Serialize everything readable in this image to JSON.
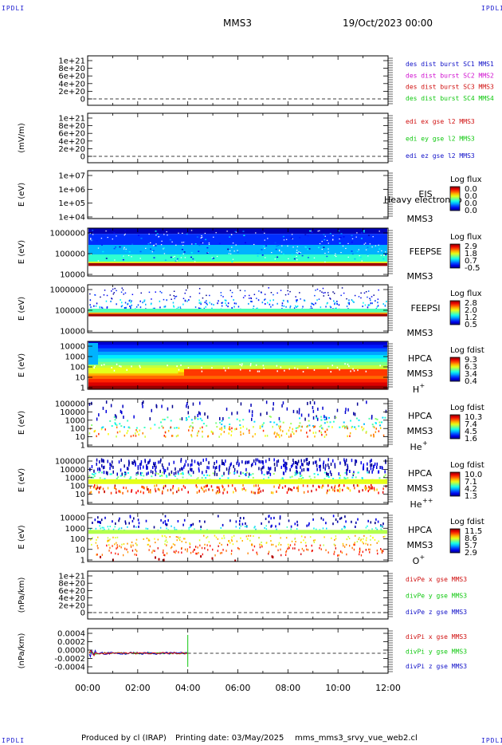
{
  "corners": {
    "top_left": "IPDLI",
    "top_right": "IPDLI",
    "bottom_left": "IPDLI",
    "bottom_right": "IPDLI"
  },
  "header": {
    "spacecraft": "MMS3",
    "date": "19/Oct/2023 00:00"
  },
  "footer": {
    "produced_by": "Produced by cl (IRAP)",
    "printing_date": "Printing date: 03/May/2025",
    "script": "mms_mms3_srvy_vue_web2.cl"
  },
  "colors": {
    "mms1": "#1010c8",
    "mms2": "#d010d0",
    "mms3": "#d01010",
    "mms4": "#10c810",
    "x": "#d01010",
    "y": "#10c810",
    "z": "#1010c8"
  },
  "chart_data": {
    "type": "multi-panel",
    "x_ticks": [
      "00:00",
      "02:00",
      "04:00",
      "06:00",
      "08:00",
      "10:00",
      "12:00"
    ],
    "xlim_hours": [
      0,
      12
    ],
    "panels": [
      {
        "id": "p0",
        "type": "line",
        "ylabel": "",
        "yticks": [
          "1e+21",
          "8e+20",
          "6e+20",
          "4e+20",
          "2e+20",
          "0"
        ],
        "ylim": [
          0,
          1e+21
        ],
        "legend": [
          "des dist burst SC1 MMS1",
          "des dist burst SC2 MMS2",
          "des dist burst SC3 MMS3",
          "des dist burst SC4 MMS4"
        ],
        "legend_colors": [
          "#1010c8",
          "#d010d0",
          "#d01010",
          "#10c810"
        ]
      },
      {
        "id": "p1",
        "type": "line",
        "ylabel": "(mV/m)",
        "yticks": [
          "1e+21",
          "8e+20",
          "6e+20",
          "4e+20",
          "2e+20",
          "0"
        ],
        "ylim": [
          0,
          1e+21
        ],
        "legend": [
          "edi ex gse l2 MMS3",
          "edi ey gse l2 MMS3",
          "edi ez gse l2 MMS3"
        ],
        "legend_colors": [
          "#d01010",
          "#10c810",
          "#1010c8"
        ]
      },
      {
        "id": "p2",
        "type": "heatmap",
        "ylabel": "E (eV)",
        "yticks": [
          "1e+07",
          "1e+06",
          "1e+05",
          "1e+04"
        ],
        "yscale": "log",
        "instrument": [
          "EIS",
          "MMS3"
        ],
        "overlay_text": "Heavy electron to",
        "cbar_title": "Log flux",
        "cbar_ticks": [
          "0.0",
          "0.0",
          "0.0",
          "0.0"
        ]
      },
      {
        "id": "p3",
        "type": "heatmap",
        "ylabel": "E (eV)",
        "yticks": [
          "1000000",
          "100000",
          "10000"
        ],
        "yscale": "log",
        "instrument": [
          "FEEPSE",
          "MMS3"
        ],
        "cbar_title": "Log flux",
        "cbar_ticks": [
          "2.9",
          "1.8",
          "0.7",
          "-0.5"
        ]
      },
      {
        "id": "p4",
        "type": "heatmap",
        "ylabel": "E (eV)",
        "yticks": [
          "1000000",
          "100000",
          "10000"
        ],
        "yscale": "log",
        "instrument": [
          "FEEPSI",
          "MMS3"
        ],
        "cbar_title": "Log flux",
        "cbar_ticks": [
          "2.8",
          "2.0",
          "1.2",
          "0.5"
        ]
      },
      {
        "id": "p5",
        "type": "heatmap",
        "ylabel": "E (eV)",
        "yticks": [
          "10000",
          "1000",
          "100",
          "10",
          "1"
        ],
        "yscale": "log",
        "instrument": [
          "HPCA",
          "MMS3",
          "H+"
        ],
        "cbar_title": "Log fdist",
        "cbar_ticks": [
          "9.3",
          "6.3",
          "3.4",
          "0.4"
        ]
      },
      {
        "id": "p6",
        "type": "heatmap",
        "ylabel": "E (eV)",
        "yticks": [
          "100000",
          "10000",
          "1000",
          "100",
          "10",
          "1"
        ],
        "yscale": "log",
        "instrument": [
          "HPCA",
          "MMS3",
          "He+"
        ],
        "cbar_title": "Log fdist",
        "cbar_ticks": [
          "10.3",
          "7.4",
          "4.5",
          "1.6"
        ]
      },
      {
        "id": "p7",
        "type": "heatmap",
        "ylabel": "E (eV)",
        "yticks": [
          "100000",
          "10000",
          "1000",
          "100",
          "10",
          "1"
        ],
        "yscale": "log",
        "instrument": [
          "HPCA",
          "MMS3",
          "He++"
        ],
        "cbar_title": "Log fdist",
        "cbar_ticks": [
          "10.0",
          "7.1",
          "4.2",
          "1.3"
        ]
      },
      {
        "id": "p8",
        "type": "heatmap",
        "ylabel": "E (eV)",
        "yticks": [
          "10000",
          "1000",
          "100",
          "10",
          "1"
        ],
        "yscale": "log",
        "instrument": [
          "HPCA",
          "MMS3",
          "O+"
        ],
        "cbar_title": "Log fdist",
        "cbar_ticks": [
          "11.5",
          "8.6",
          "5.7",
          "2.9"
        ]
      },
      {
        "id": "p9",
        "type": "line",
        "ylabel": "(nPa/km)",
        "yticks": [
          "1e+21",
          "8e+20",
          "6e+20",
          "4e+20",
          "2e+20",
          "0"
        ],
        "ylim": [
          0,
          1e+21
        ],
        "legend": [
          "divPe x gse MMS3",
          "divPe y gse MMS3",
          "divPe z gse MMS3"
        ],
        "legend_colors": [
          "#d01010",
          "#10c810",
          "#1010c8"
        ]
      },
      {
        "id": "p10",
        "type": "line",
        "ylabel": "(nPa/km)",
        "yticks": [
          "0.0004",
          "0.0002",
          "0.0000",
          "-0.0002",
          "-0.0004"
        ],
        "ylim": [
          -0.0005,
          0.0005
        ],
        "legend": [
          "divPi x gse MMS3",
          "divPi y gse MMS3",
          "divPi z gse MMS3"
        ],
        "legend_colors": [
          "#d01010",
          "#10c810",
          "#1010c8"
        ],
        "data_span_hours": [
          0,
          4
        ]
      }
    ]
  }
}
